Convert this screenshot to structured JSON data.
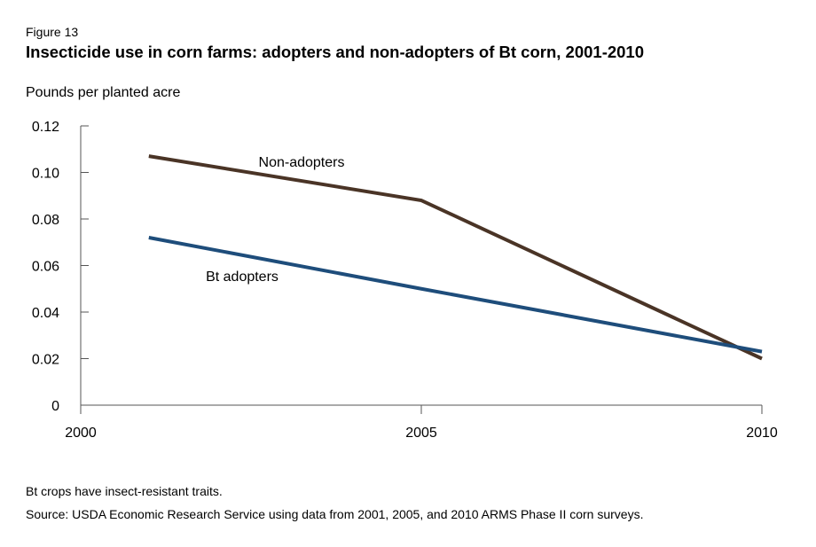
{
  "figure_label": "Figure 13",
  "chart_data": {
    "type": "line",
    "title": "Insecticide use in  corn farms: adopters and non-adopters of Bt corn, 2001-2010",
    "xlabel": "",
    "ylabel": "Pounds per planted acre",
    "xlim": [
      2000,
      2010
    ],
    "ylim": [
      0,
      0.12
    ],
    "x_ticks": [
      "2000",
      "2005",
      "2010"
    ],
    "y_ticks": [
      "0",
      "0.02",
      "0.04",
      "0.06",
      "0.08",
      "0.10",
      "0.12"
    ],
    "grid": false,
    "legend": "inline labels",
    "x": [
      2001,
      2005,
      2010
    ],
    "series": [
      {
        "name": "Non-adopters",
        "values": [
          0.107,
          0.088,
          0.02
        ],
        "color": "#4a3426"
      },
      {
        "name": "Bt adopters",
        "values": [
          0.072,
          0.05,
          0.023
        ],
        "color": "#1e4d7b"
      }
    ]
  },
  "notes": {
    "note": "Bt crops have insect-resistant traits.",
    "source": "Source:  USDA Economic Research Service using data from 2001, 2005, and 2010 ARMS Phase II corn surveys."
  }
}
